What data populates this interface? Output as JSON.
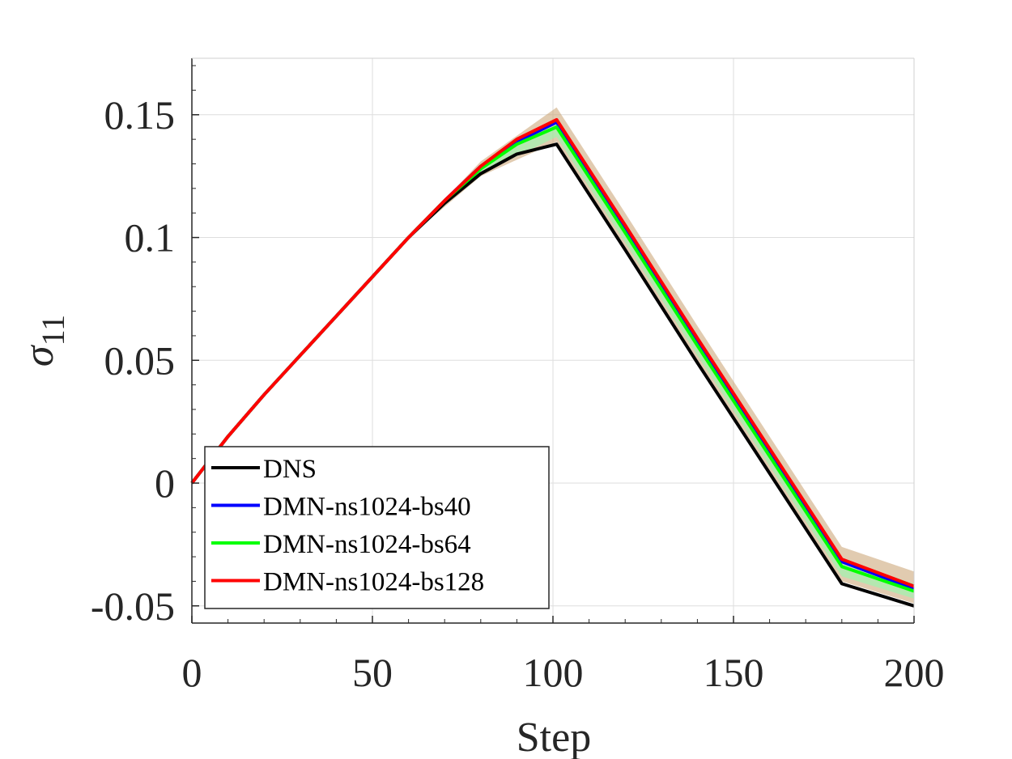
{
  "chart_data": {
    "type": "line",
    "title": "",
    "xlabel": "Step",
    "ylabel": "σ",
    "ylabel_subscript": "11",
    "xlim": [
      0,
      200
    ],
    "ylim": [
      -0.057,
      0.173
    ],
    "xticks": [
      0,
      50,
      100,
      150,
      200
    ],
    "xtick_labels": [
      "0",
      "50",
      "100",
      "150",
      "200"
    ],
    "yticks": [
      -0.05,
      0,
      0.05,
      0.1,
      0.15
    ],
    "ytick_labels": [
      "-0.05",
      "0",
      "0.05",
      "0.1",
      "0.15"
    ],
    "grid": true,
    "legend_position": "bottom-left",
    "series": [
      {
        "name": "DNS",
        "color": "#000000",
        "x": [
          0,
          10,
          20,
          30,
          40,
          50,
          60,
          70,
          80,
          90,
          101,
          120,
          140,
          160,
          180,
          200
        ],
        "y": [
          0,
          0.019,
          0.036,
          0.052,
          0.068,
          0.084,
          0.1,
          0.114,
          0.126,
          0.134,
          0.138,
          0.095,
          0.049,
          0.004,
          -0.041,
          -0.05
        ]
      },
      {
        "name": "DMN-ns1024-bs40",
        "color": "#0000ff",
        "x": [
          0,
          10,
          20,
          30,
          40,
          50,
          60,
          70,
          80,
          90,
          101,
          120,
          140,
          160,
          180,
          200
        ],
        "y": [
          0,
          0.019,
          0.036,
          0.052,
          0.068,
          0.084,
          0.1,
          0.115,
          0.129,
          0.139,
          0.147,
          0.104,
          0.058,
          0.013,
          -0.032,
          -0.043
        ]
      },
      {
        "name": "DMN-ns1024-bs64",
        "color": "#00ff00",
        "x": [
          0,
          10,
          20,
          30,
          40,
          50,
          60,
          70,
          80,
          90,
          101,
          120,
          140,
          160,
          180,
          200
        ],
        "y": [
          0,
          0.019,
          0.036,
          0.052,
          0.068,
          0.084,
          0.1,
          0.115,
          0.128,
          0.138,
          0.145,
          0.102,
          0.056,
          0.011,
          -0.034,
          -0.044
        ]
      },
      {
        "name": "DMN-ns1024-bs128",
        "color": "#ff0000",
        "x": [
          0,
          10,
          20,
          30,
          40,
          50,
          60,
          70,
          80,
          90,
          101,
          120,
          140,
          160,
          180,
          200
        ],
        "y": [
          0,
          0.019,
          0.036,
          0.052,
          0.068,
          0.084,
          0.1,
          0.115,
          0.129,
          0.14,
          0.148,
          0.105,
          0.059,
          0.014,
          -0.031,
          -0.042
        ]
      }
    ],
    "uncertainty_bands": [
      {
        "color": "#c8a070",
        "x": [
          0,
          20,
          40,
          60,
          80,
          101,
          120,
          140,
          160,
          180,
          200
        ],
        "upper": [
          0,
          0.036,
          0.068,
          0.1,
          0.131,
          0.153,
          0.11,
          0.064,
          0.019,
          -0.026,
          -0.036
        ],
        "lower": [
          0,
          0.036,
          0.068,
          0.1,
          0.125,
          0.139,
          0.096,
          0.05,
          0.005,
          -0.04,
          -0.049
        ]
      },
      {
        "color": "#90ffb0",
        "x": [
          0,
          20,
          40,
          60,
          80,
          101,
          120,
          140,
          160,
          180,
          200
        ],
        "upper": [
          0,
          0.036,
          0.068,
          0.1,
          0.129,
          0.148,
          0.105,
          0.059,
          0.014,
          -0.031,
          -0.041
        ],
        "lower": [
          0,
          0.036,
          0.068,
          0.1,
          0.126,
          0.141,
          0.098,
          0.052,
          0.007,
          -0.038,
          -0.047
        ]
      }
    ]
  }
}
